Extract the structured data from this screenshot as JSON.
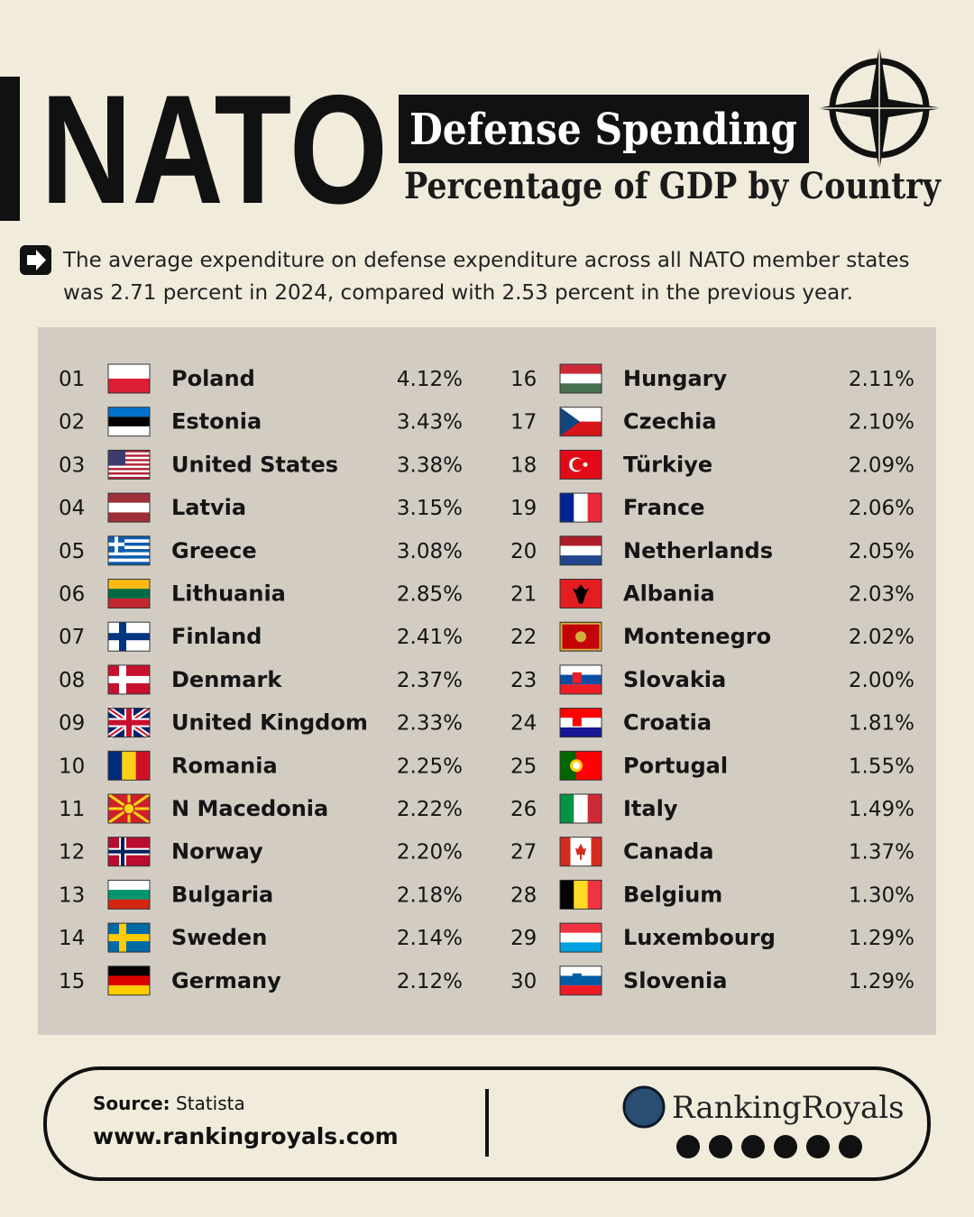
{
  "header": {
    "title": "NATO",
    "badge": "Defense Spending",
    "subtitle": "Percentage of GDP by Country"
  },
  "intro": {
    "lines": [
      "The average expenditure on defense expenditure across all NATO member states",
      "was 2.71 percent in 2024, compared with 2.53 percent in the previous year."
    ]
  },
  "table": {
    "rows": [
      [
        "01",
        "Poland",
        "4.12%"
      ],
      [
        "02",
        "Estonia",
        "3.43%"
      ],
      [
        "03",
        "United States",
        "3.38%"
      ],
      [
        "04",
        "Latvia",
        "3.15%"
      ],
      [
        "05",
        "Greece",
        "3.08%"
      ],
      [
        "06",
        "Lithuania",
        "2.85%"
      ],
      [
        "07",
        "Finland",
        "2.41%"
      ],
      [
        "08",
        "Denmark",
        "2.37%"
      ],
      [
        "09",
        "United Kingdom",
        "2.33%"
      ],
      [
        "10",
        "Romania",
        "2.25%"
      ],
      [
        "11",
        "N Macedonia",
        "2.22%"
      ],
      [
        "12",
        "Norway",
        "2.20%"
      ],
      [
        "13",
        "Bulgaria",
        "2.18%"
      ],
      [
        "14",
        "Sweden",
        "2.14%"
      ],
      [
        "15",
        "Germany",
        "2.12%"
      ],
      [
        "16",
        "Hungary",
        "2.11%"
      ],
      [
        "17",
        "Czechia",
        "2.10%"
      ],
      [
        "18",
        "Türkiye",
        "2.09%"
      ],
      [
        "19",
        "France",
        "2.06%"
      ],
      [
        "20",
        "Netherlands",
        "2.05%"
      ],
      [
        "21",
        "Albania",
        "2.03%"
      ],
      [
        "22",
        "Montenegro",
        "2.02%"
      ],
      [
        "23",
        "Slovakia",
        "2.00%"
      ],
      [
        "24",
        "Croatia",
        "1.81%"
      ],
      [
        "25",
        "Portugal",
        "1.55%"
      ],
      [
        "26",
        "Italy",
        "1.49%"
      ],
      [
        "27",
        "Canada",
        "1.37%"
      ],
      [
        "28",
        "Belgium",
        "1.30%"
      ],
      [
        "29",
        "Luxembourg",
        "1.29%"
      ],
      [
        "30",
        "Slovenia",
        "1.29%"
      ]
    ]
  },
  "footer": {
    "source_label": "Source:",
    "source": "Statista",
    "url": "www.rankingroyals.com",
    "brand": "RankingRoyals"
  }
}
